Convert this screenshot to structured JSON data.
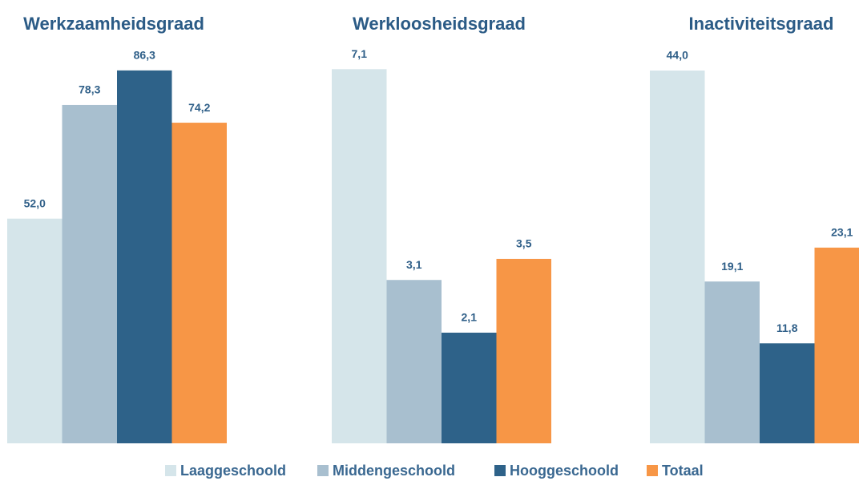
{
  "chart_data": [
    {
      "type": "bar",
      "title": "Werkzaamheidsgraad",
      "values": [
        52.0,
        78.3,
        86.3,
        74.2
      ],
      "value_labels": [
        "52,0",
        "78,3",
        "86,3",
        "74,2"
      ],
      "ylim": [
        0,
        100
      ]
    },
    {
      "type": "bar",
      "title": "Werkloosheidsgraad",
      "values": [
        7.1,
        3.1,
        2.1,
        3.5
      ],
      "value_labels": [
        "7,1",
        "3,1",
        "2,1",
        "3,5"
      ],
      "ylim": [
        0,
        8.2
      ]
    },
    {
      "type": "bar",
      "title": "Inactiviteitsgraad",
      "values": [
        44.0,
        19.1,
        11.8,
        23.1
      ],
      "value_labels": [
        "44,0",
        "19,1",
        "11,8",
        "23,1"
      ],
      "ylim": [
        0,
        51
      ]
    }
  ],
  "legend": [
    {
      "name": "Laaggeschoold",
      "color": "#d5e5ea"
    },
    {
      "name": "Middengeschoold",
      "color": "#a8bfcf"
    },
    {
      "name": "Hooggeschoold",
      "color": "#2e6289"
    },
    {
      "name": "Totaal",
      "color": "#f79646"
    }
  ]
}
